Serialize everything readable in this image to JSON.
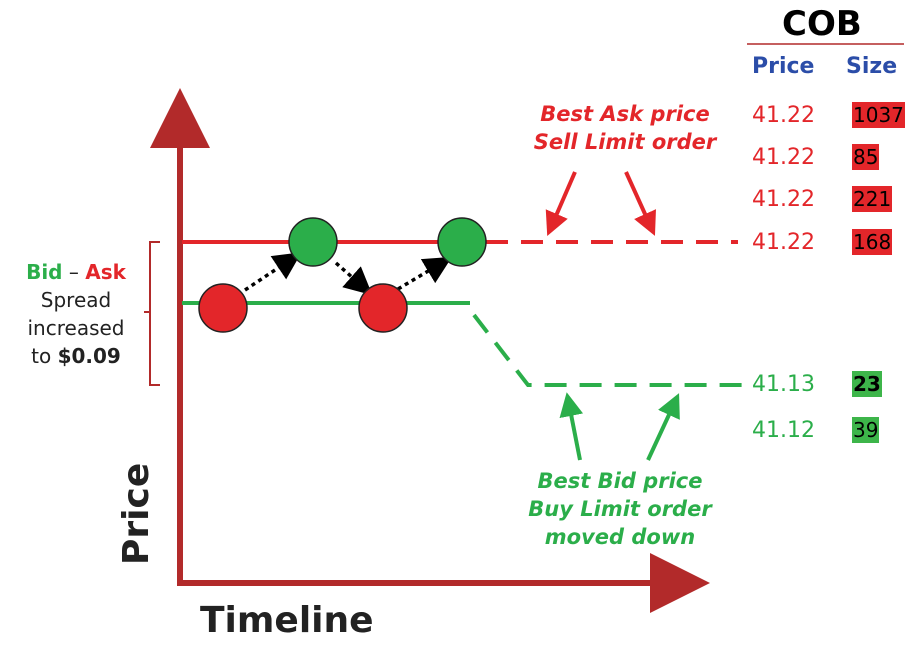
{
  "cob": {
    "title": "COB",
    "price_header": "Price",
    "size_header": "Size",
    "asks": [
      {
        "price": "41.22",
        "size": "1037"
      },
      {
        "price": "41.22",
        "size": "85"
      },
      {
        "price": "41.22",
        "size": "221"
      },
      {
        "price": "41.22",
        "size": "168"
      }
    ],
    "bids": [
      {
        "price": "41.13",
        "size": "23"
      },
      {
        "price": "41.12",
        "size": "39"
      }
    ]
  },
  "annotations": {
    "ask_line1": "Best Ask price",
    "ask_line2": "Sell Limit order",
    "bid_line1": "Best Bid price",
    "bid_line2": "Buy Limit order",
    "bid_line3": "moved down"
  },
  "spread": {
    "bid": "Bid",
    "dash": " – ",
    "ask": "Ask",
    "line2": "Spread",
    "line3": "increased",
    "line4_prefix": "to ",
    "line4_value": "$0.09"
  },
  "axes": {
    "x_label": "Timeline",
    "y_label": "Price"
  },
  "colors": {
    "ask": "#E3262A",
    "bid": "#2BAE4A",
    "axis": "#B22A2A",
    "header": "#2B4DA8"
  }
}
